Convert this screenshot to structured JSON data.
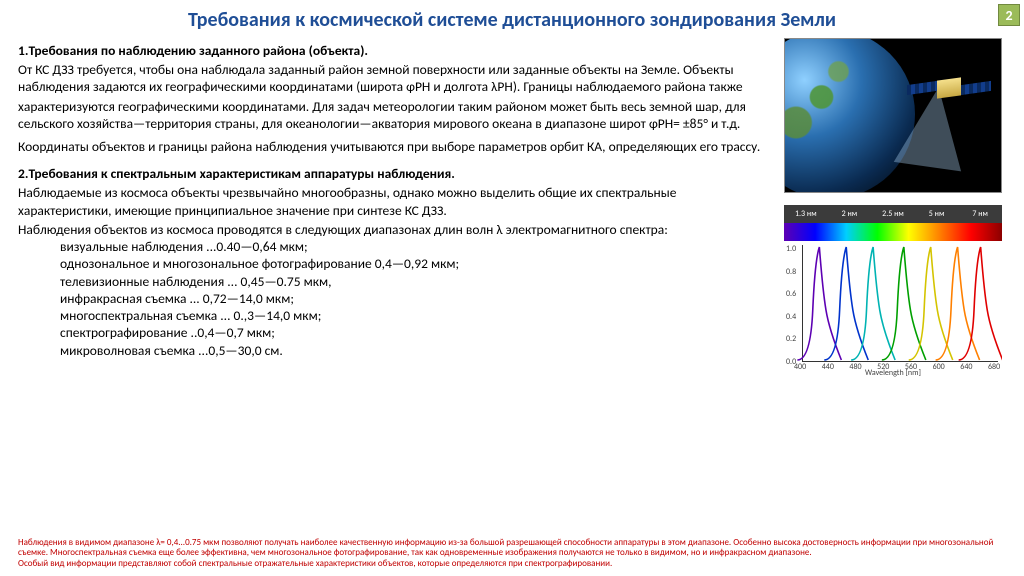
{
  "page_number": "2",
  "title": "Требования к космической системе  дистанционного зондирования Земли",
  "section1": {
    "heading": "1.Требования по наблюдению заданного района (объекта).",
    "p1": "От КС ДЗЗ требуется, чтобы она наблюдала заданный район земной поверхности или заданные объекты на Земле. Объекты наблюдения задаются их географическими координатами (широта φРН и долгота λРН). Границы наблюдаемого района также",
    "p2": "характеризуются географическими координатами. Для задач метеорологии таким районом может быть весь земной шар, для сельского хозяйства—территория страны, для океанологии—акватория мирового океана в диапазоне широт φРН= ±85° и т.д.",
    "p3": "Координаты объектов и границы района наблюдения учитываются при выборе параметров орбит КА, определяющих его трассу."
  },
  "section2": {
    "heading": "2.Требования к спектральным характеристикам аппаратуры наблюдения.",
    "p1": "Наблюдаемые из космоса объекты чрезвычайно многообразны, однако можно выделить общие их спектральные характеристики, имеющие принципиальное значение при синтезе КС ДЗЗ.",
    "p2": "Наблюдения объектов из космоса проводятся в следующих диапазонах длин волн λ электромагнитного спектра:",
    "list": [
      "визуальные наблюдения ...0.40—0,64 мкм;",
      "однозональное и многозональное фотографирование 0,4—0,92 мкм;",
      "телевизионные наблюдения ... 0,45—0.75 мкм,",
      "инфракрасная съемка ... 0,72—14,0 мкм;",
      "многоспектральная съемка ... 0.,3—14,0 мкм;",
      "спектрографирование ..0,4—0,7 мкм;",
      "микроволновая съемка ...0,5—30,0 см."
    ]
  },
  "footnote": {
    "p1": "Наблюдения в видимом диапазоне λ= 0,4...0.75 мкм позволяют получать наиболее качественную информацию из-за большой разрешающей способности аппаратуры в этом диапазоне. Особенно высока достоверность информации при многозональной съемке. Многоспектральная съемка еще более эффективна, чем многозональное фотографирование, так как одновременные изображения получаются не только в видимом, но и инфракрасном диапазоне.",
    "p2": "Особый вид информации представляют собой спектральные отражательные характеристики объектов, которые определяются при спектрографировании."
  },
  "chart": {
    "header_labels": [
      "1.3 нм",
      "2 нм",
      "2.5 нм",
      "5 нм",
      "7 нм"
    ],
    "x_axis_label": "Wavelength [nm]",
    "x_ticks": [
      "400",
      "440",
      "480",
      "520",
      "560",
      "600",
      "640",
      "680"
    ],
    "y_ticks": [
      "0.0",
      "0.2",
      "0.4",
      "0.6",
      "0.8",
      "1.0"
    ],
    "curves": [
      {
        "color": "#5d00b3",
        "peak_x": 0.08
      },
      {
        "color": "#0033cc",
        "peak_x": 0.22
      },
      {
        "color": "#00b3b3",
        "peak_x": 0.36
      },
      {
        "color": "#00a000",
        "peak_x": 0.52
      },
      {
        "color": "#d4c400",
        "peak_x": 0.66
      },
      {
        "color": "#ff8000",
        "peak_x": 0.8
      },
      {
        "color": "#e00000",
        "peak_x": 0.92
      }
    ]
  },
  "images": {
    "satellite_alt": "satellite-over-earth",
    "chart_alt": "spectral-response-curves"
  }
}
